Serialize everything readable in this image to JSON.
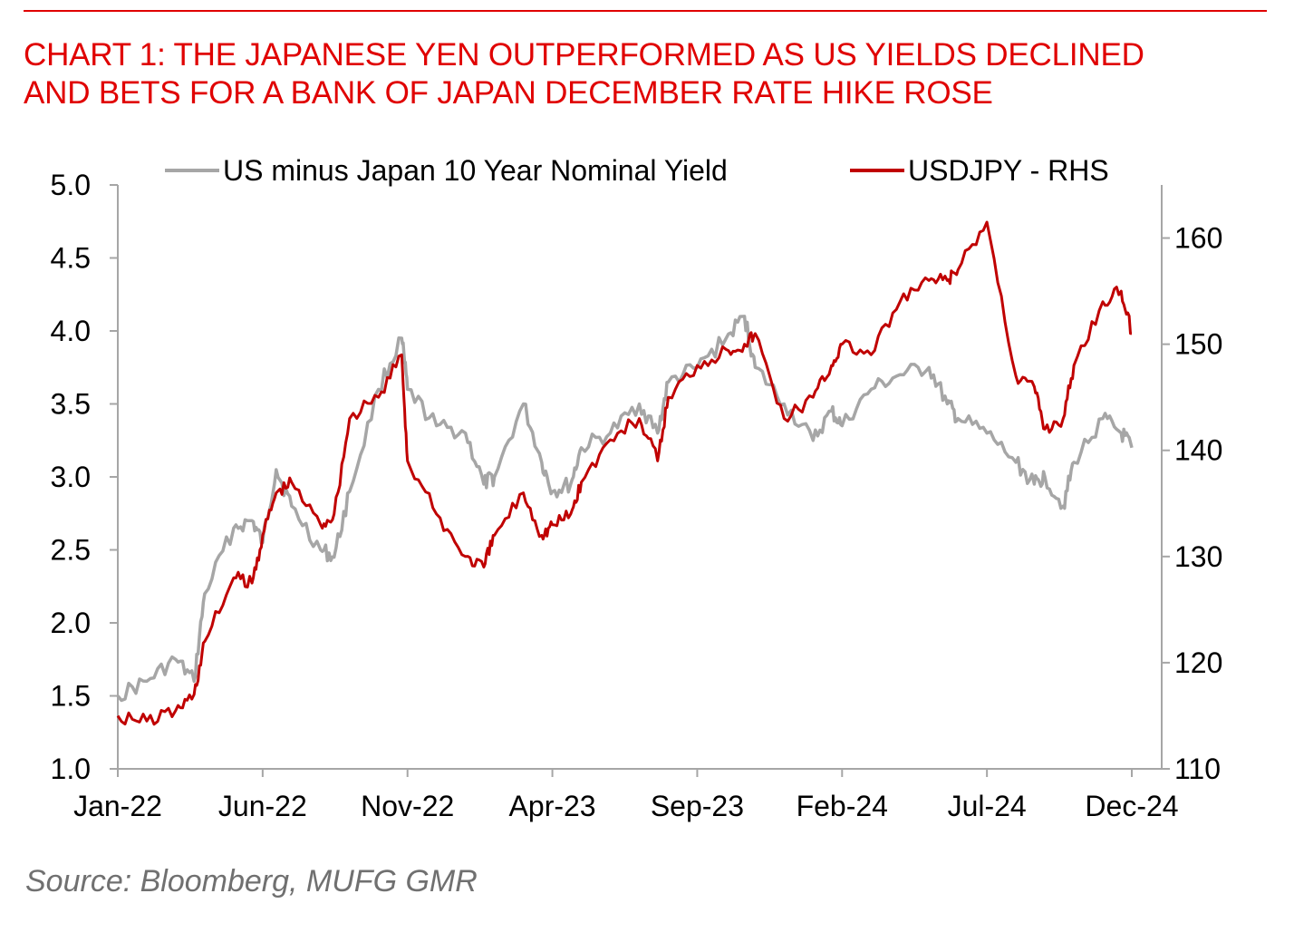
{
  "title_lines": [
    "CHART 1: THE JAPANESE YEN OUTPERFORMED AS US YIELDS DECLINED",
    "AND BETS FOR A BANK OF JAPAN DECEMBER RATE HIKE ROSE"
  ],
  "source": "Source: Bloomberg, MUFG GMR",
  "colors": {
    "title": "#e00000",
    "series_yield": "#a6a6a6",
    "series_usdjpy": "#c00000",
    "axis": "#a6a6a6"
  },
  "chart_data": {
    "type": "line",
    "x_tick_labels": [
      "Jan-22",
      "Jun-22",
      "Nov-22",
      "Apr-23",
      "Sep-23",
      "Feb-24",
      "Jul-24",
      "Dec-24"
    ],
    "x_range": [
      "2022-01",
      "2024-12"
    ],
    "y_left": {
      "ticks": [
        "1.0",
        "1.5",
        "2.0",
        "2.5",
        "3.0",
        "3.5",
        "4.0",
        "4.5",
        "5.0"
      ],
      "range": [
        1.0,
        5.0
      ]
    },
    "y_right": {
      "ticks": [
        "110",
        "120",
        "130",
        "140",
        "150",
        "160"
      ],
      "range": [
        110,
        165
      ]
    },
    "legend_position": "top",
    "grid": false,
    "series": [
      {
        "name": "US minus Japan 10 Year Nominal Yield",
        "axis": "left",
        "points": [
          [
            "2022-01",
            1.5
          ],
          [
            "2022-02",
            1.6
          ],
          [
            "2022-03",
            1.75
          ],
          [
            "2022-03-20",
            1.6
          ],
          [
            "2022-04",
            2.2
          ],
          [
            "2022-05",
            2.65
          ],
          [
            "2022-05-20",
            2.7
          ],
          [
            "2022-06",
            2.55
          ],
          [
            "2022-06-15",
            3.05
          ],
          [
            "2022-07",
            2.8
          ],
          [
            "2022-08",
            2.5
          ],
          [
            "2022-08-15",
            2.45
          ],
          [
            "2022-09",
            2.9
          ],
          [
            "2022-10",
            3.6
          ],
          [
            "2022-10-25",
            3.95
          ],
          [
            "2022-11",
            3.6
          ],
          [
            "2022-12",
            3.35
          ],
          [
            "2023-01",
            3.3
          ],
          [
            "2023-01-20",
            2.95
          ],
          [
            "2023-02",
            3.0
          ],
          [
            "2023-03",
            3.5
          ],
          [
            "2023-03-20",
            3.1
          ],
          [
            "2023-04",
            2.9
          ],
          [
            "2023-04-20",
            2.95
          ],
          [
            "2023-05",
            3.2
          ],
          [
            "2023-06",
            3.3
          ],
          [
            "2023-07",
            3.5
          ],
          [
            "2023-07-20",
            3.3
          ],
          [
            "2023-08",
            3.65
          ],
          [
            "2023-09",
            3.75
          ],
          [
            "2023-10",
            3.95
          ],
          [
            "2023-10-20",
            4.1
          ],
          [
            "2023-11",
            3.75
          ],
          [
            "2023-12",
            3.5
          ],
          [
            "2024-01",
            3.25
          ],
          [
            "2024-01-20",
            3.45
          ],
          [
            "2024-02",
            3.35
          ],
          [
            "2024-03",
            3.6
          ],
          [
            "2024-04",
            3.7
          ],
          [
            "2024-05",
            3.75
          ],
          [
            "2024-05-20",
            3.5
          ],
          [
            "2024-06",
            3.4
          ],
          [
            "2024-07",
            3.3
          ],
          [
            "2024-08",
            3.1
          ],
          [
            "2024-08-20",
            2.95
          ],
          [
            "2024-09",
            3.0
          ],
          [
            "2024-09-20",
            2.8
          ],
          [
            "2024-10",
            3.1
          ],
          [
            "2024-11",
            3.4
          ],
          [
            "2024-11-20",
            3.3
          ],
          [
            "2024-12",
            3.2
          ]
        ]
      },
      {
        "name": "USDJPY - RHS",
        "axis": "right",
        "points": [
          [
            "2022-01",
            115
          ],
          [
            "2022-02",
            114.5
          ],
          [
            "2022-03",
            115.5
          ],
          [
            "2022-03-20",
            117
          ],
          [
            "2022-04",
            122
          ],
          [
            "2022-05",
            128
          ],
          [
            "2022-05-20",
            127.5
          ],
          [
            "2022-06",
            132
          ],
          [
            "2022-06-15",
            136
          ],
          [
            "2022-07",
            137
          ],
          [
            "2022-08",
            133
          ],
          [
            "2022-08-15",
            134
          ],
          [
            "2022-09",
            143
          ],
          [
            "2022-10",
            145
          ],
          [
            "2022-10-25",
            149
          ],
          [
            "2022-11",
            139
          ],
          [
            "2022-12",
            134
          ],
          [
            "2023-01",
            130
          ],
          [
            "2023-01-20",
            129
          ],
          [
            "2023-02",
            132
          ],
          [
            "2023-03",
            136
          ],
          [
            "2023-03-20",
            132
          ],
          [
            "2023-04",
            133
          ],
          [
            "2023-04-20",
            134
          ],
          [
            "2023-05",
            137
          ],
          [
            "2023-06",
            141
          ],
          [
            "2023-07",
            143
          ],
          [
            "2023-07-20",
            139
          ],
          [
            "2023-08",
            145
          ],
          [
            "2023-09",
            148
          ],
          [
            "2023-10",
            149.5
          ],
          [
            "2023-10-20",
            150
          ],
          [
            "2023-11",
            151
          ],
          [
            "2023-12",
            143
          ],
          [
            "2024-01",
            145
          ],
          [
            "2024-01-20",
            148
          ],
          [
            "2024-02",
            150
          ],
          [
            "2024-03",
            149
          ],
          [
            "2024-04",
            154
          ],
          [
            "2024-05",
            156
          ],
          [
            "2024-05-20",
            156
          ],
          [
            "2024-06",
            157
          ],
          [
            "2024-07",
            161.5
          ],
          [
            "2024-08",
            147
          ],
          [
            "2024-08-20",
            146
          ],
          [
            "2024-09",
            142
          ],
          [
            "2024-09-20",
            143
          ],
          [
            "2024-10",
            148
          ],
          [
            "2024-11",
            154
          ],
          [
            "2024-11-20",
            155
          ],
          [
            "2024-12",
            151
          ]
        ]
      }
    ]
  }
}
